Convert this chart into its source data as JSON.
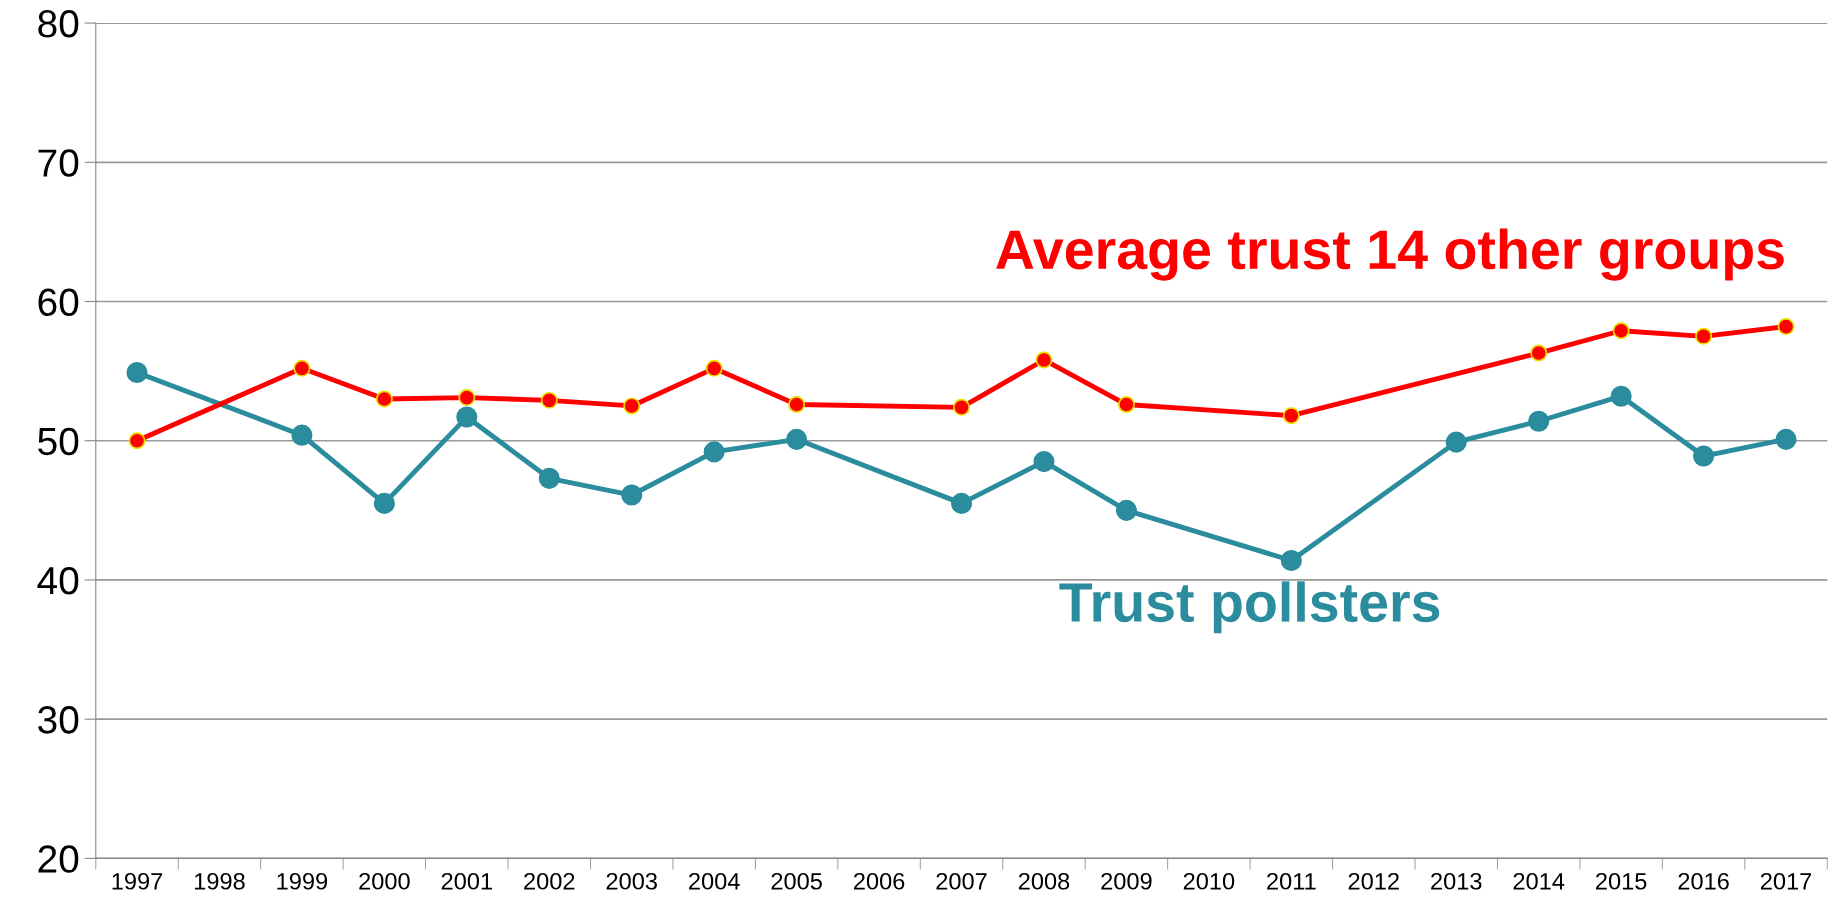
{
  "chart_data": {
    "type": "line",
    "categories": [
      "1997",
      "1998",
      "1999",
      "2000",
      "2001",
      "2002",
      "2003",
      "2004",
      "2005",
      "2006",
      "2007",
      "2008",
      "2009",
      "2010",
      "2011",
      "2012",
      "2013",
      "2014",
      "2015",
      "2016",
      "2017"
    ],
    "series": [
      {
        "name": "Average trust 14 other groups",
        "color": "#ff0000",
        "values": [
          50.0,
          null,
          55.2,
          53.0,
          53.1,
          52.9,
          52.5,
          55.2,
          52.6,
          null,
          52.4,
          55.8,
          52.6,
          null,
          51.8,
          null,
          null,
          56.3,
          57.9,
          57.5,
          58.2
        ]
      },
      {
        "name": "Trust pollsters",
        "color": "#2a8c9c",
        "values": [
          54.9,
          null,
          50.4,
          45.5,
          51.7,
          47.3,
          46.1,
          49.2,
          50.1,
          null,
          45.5,
          48.5,
          45.0,
          null,
          41.4,
          null,
          49.9,
          51.4,
          53.2,
          48.9,
          50.1
        ]
      }
    ],
    "ylim": [
      20,
      80
    ],
    "yticks": [
      20,
      30,
      40,
      50,
      60,
      70,
      80
    ],
    "grid": "y",
    "marker": "circle",
    "line_style": "solid",
    "legend": false
  }
}
